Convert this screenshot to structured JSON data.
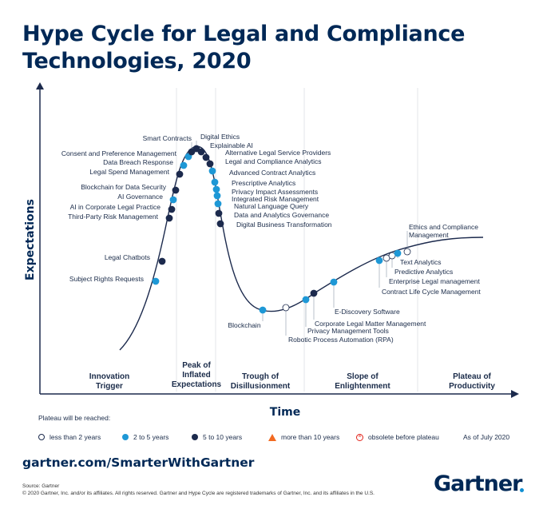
{
  "title": "Hype Cycle for Legal and Compliance Technologies, 2020",
  "chart_data": {
    "type": "hype_cycle",
    "xlabel": "Time",
    "ylabel": "Expectations",
    "phases": [
      "Innovation Trigger",
      "Peak of Inflated Expectations",
      "Trough of Disillusionment",
      "Slope of Enlightenment",
      "Plateau of Productivity"
    ],
    "colors": {
      "less_than_2": "#ffffff",
      "2_to_5": "#1e98d6",
      "5_to_10": "#1c2a4d",
      "more_than_10": "#f26a21",
      "obsolete": "#e3241b"
    },
    "points": [
      {
        "label": "Subject Rights Requests",
        "phase": "Innovation Trigger",
        "plateau": "2_to_5"
      },
      {
        "label": "Legal Chatbots",
        "phase": "Innovation Trigger",
        "plateau": "5_to_10"
      },
      {
        "label": "Third-Party Risk Management",
        "phase": "Peak of Inflated Expectations",
        "plateau": "5_to_10"
      },
      {
        "label": "AI in Corporate Legal Practice",
        "phase": "Peak of Inflated Expectations",
        "plateau": "5_to_10"
      },
      {
        "label": "AI Governance",
        "phase": "Peak of Inflated Expectations",
        "plateau": "2_to_5"
      },
      {
        "label": "Blockchain for Data Security",
        "phase": "Peak of Inflated Expectations",
        "plateau": "5_to_10"
      },
      {
        "label": "Legal Spend Management",
        "phase": "Peak of Inflated Expectations",
        "plateau": "5_to_10"
      },
      {
        "label": "Data Breach Response",
        "phase": "Peak of Inflated Expectations",
        "plateau": "2_to_5"
      },
      {
        "label": "Consent and Preference Management",
        "phase": "Peak of Inflated Expectations",
        "plateau": "2_to_5"
      },
      {
        "label": "Smart Contracts",
        "phase": "Peak of Inflated Expectations",
        "plateau": "5_to_10"
      },
      {
        "label": "Digital Ethics",
        "phase": "Peak of Inflated Expectations",
        "plateau": "5_to_10"
      },
      {
        "label": "Explainable AI",
        "phase": "Peak of Inflated Expectations",
        "plateau": "5_to_10"
      },
      {
        "label": "Alternative Legal Service Providers",
        "phase": "Peak of Inflated Expectations",
        "plateau": "5_to_10"
      },
      {
        "label": "Legal and Compliance Analytics",
        "phase": "Peak of Inflated Expectations",
        "plateau": "5_to_10"
      },
      {
        "label": "Advanced Contract Analytics",
        "phase": "Trough of Disillusionment",
        "plateau": "2_to_5"
      },
      {
        "label": "Prescriptive Analytics",
        "phase": "Trough of Disillusionment",
        "plateau": "2_to_5"
      },
      {
        "label": "Privacy Impact Assessments",
        "phase": "Trough of Disillusionment",
        "plateau": "2_to_5"
      },
      {
        "label": "Integrated Risk Management",
        "phase": "Trough of Disillusionment",
        "plateau": "2_to_5"
      },
      {
        "label": "Natural Language Query",
        "phase": "Trough of Disillusionment",
        "plateau": "2_to_5"
      },
      {
        "label": "Data and Analytics Governance",
        "phase": "Trough of Disillusionment",
        "plateau": "5_to_10"
      },
      {
        "label": "Digital Business Transformation",
        "phase": "Trough of Disillusionment",
        "plateau": "5_to_10"
      },
      {
        "label": "Blockchain",
        "phase": "Trough of Disillusionment",
        "plateau": "2_to_5"
      },
      {
        "label": "Robotic Process Automation (RPA)",
        "phase": "Trough of Disillusionment",
        "plateau": "less_than_2"
      },
      {
        "label": "Privacy Management Tools",
        "phase": "Slope of Enlightenment",
        "plateau": "2_to_5"
      },
      {
        "label": "Corporate Legal Matter Management",
        "phase": "Slope of Enlightenment",
        "plateau": "5_to_10"
      },
      {
        "label": "E-Discovery Software",
        "phase": "Slope of Enlightenment",
        "plateau": "2_to_5"
      },
      {
        "label": "Contract Life Cycle Management",
        "phase": "Slope of Enlightenment",
        "plateau": "2_to_5"
      },
      {
        "label": "Enterprise Legal management",
        "phase": "Slope of Enlightenment",
        "plateau": "less_than_2"
      },
      {
        "label": "Predictive Analytics",
        "phase": "Slope of Enlightenment",
        "plateau": "less_than_2"
      },
      {
        "label": "Text Analytics",
        "phase": "Slope of Enlightenment",
        "plateau": "2_to_5"
      },
      {
        "label": "Ethics and Compliance Management",
        "phase": "Slope of Enlightenment",
        "plateau": "less_than_2"
      }
    ]
  },
  "legend": {
    "title": "Plateau will be reached:",
    "items": [
      {
        "key": "less_than_2",
        "label": "less than 2 years"
      },
      {
        "key": "2_to_5",
        "label": "2 to 5 years"
      },
      {
        "key": "5_to_10",
        "label": "5 to 10 years"
      },
      {
        "key": "more_than_10",
        "label": "more than 10 years"
      },
      {
        "key": "obsolete",
        "label": "obsolete before plateau"
      }
    ],
    "as_of": "As of July 2020"
  },
  "footer": {
    "url": "gartner.com/SmarterWithGartner",
    "source": "Source: Gartner",
    "copyright": "© 2020 Gartner, Inc. and/or its affiliates. All rights reserved. Gartner and Hype Cycle are registered trademarks of Gartner, Inc. and its affiliates in the U.S.",
    "logo": "Gartner"
  }
}
